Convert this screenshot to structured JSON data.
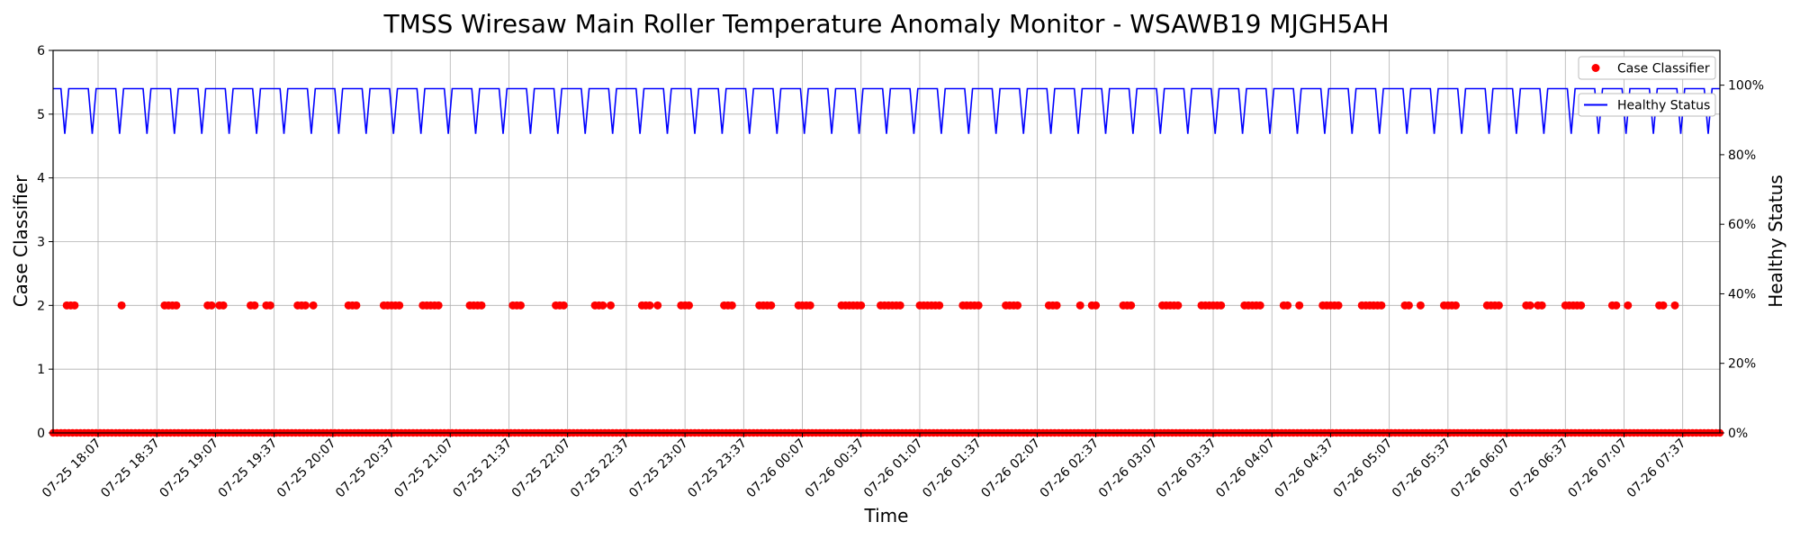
{
  "chart_data": {
    "type": "line",
    "title": "TMSS Wiresaw Main Roller Temperature Anomaly Monitor - WSAWB19 MJGH5AH",
    "xlabel": "Time",
    "ylabel": "Case Classifier",
    "y2label": "Healthy Status",
    "x_range": [
      "2025-07-25 17:44",
      "2025-07-26 07:56"
    ],
    "ylim": [
      0,
      6
    ],
    "y2lim": [
      "0%",
      "110%"
    ],
    "grid": true,
    "legend_position": "top-right",
    "x_ticks": [
      "07-25 18:07",
      "07-25 18:37",
      "07-25 19:07",
      "07-25 19:37",
      "07-25 20:07",
      "07-25 20:37",
      "07-25 21:07",
      "07-25 21:37",
      "07-25 22:07",
      "07-25 22:37",
      "07-25 23:07",
      "07-25 23:37",
      "07-26 00:07",
      "07-26 00:37",
      "07-26 01:07",
      "07-26 01:37",
      "07-26 02:07",
      "07-26 02:37",
      "07-26 03:07",
      "07-26 03:37",
      "07-26 04:07",
      "07-26 04:37",
      "07-26 05:07",
      "07-26 05:37",
      "07-26 06:07",
      "07-26 06:37",
      "07-26 07:07",
      "07-26 07:37"
    ],
    "y_ticks": [
      "0",
      "1",
      "2",
      "3",
      "4",
      "5",
      "6"
    ],
    "y2_ticks": [
      "0%",
      "20%",
      "40%",
      "60%",
      "80%",
      "100%"
    ],
    "series": [
      {
        "name": "Case Classifier",
        "axis": "left",
        "style": "markers",
        "color": "#ff0000",
        "baseline_value": 0,
        "anomaly_value": 2,
        "anomaly_times": [
          "07-25 17:51",
          "07-25 17:53",
          "07-25 17:55",
          "07-25 18:19",
          "07-25 18:41",
          "07-25 18:43",
          "07-25 18:45",
          "07-25 18:47",
          "07-25 19:03",
          "07-25 19:05",
          "07-25 19:09",
          "07-25 19:11",
          "07-25 19:25",
          "07-25 19:27",
          "07-25 19:33",
          "07-25 19:35",
          "07-25 19:49",
          "07-25 19:51",
          "07-25 19:53",
          "07-25 19:57",
          "07-25 20:15",
          "07-25 20:17",
          "07-25 20:19",
          "07-25 20:33",
          "07-25 20:35",
          "07-25 20:37",
          "07-25 20:39",
          "07-25 20:41",
          "07-25 20:53",
          "07-25 20:55",
          "07-25 20:57",
          "07-25 20:59",
          "07-25 21:01",
          "07-25 21:17",
          "07-25 21:19",
          "07-25 21:21",
          "07-25 21:23",
          "07-25 21:39",
          "07-25 21:41",
          "07-25 21:43",
          "07-25 22:01",
          "07-25 22:03",
          "07-25 22:05",
          "07-25 22:21",
          "07-25 22:23",
          "07-25 22:25",
          "07-25 22:29",
          "07-25 22:45",
          "07-25 22:47",
          "07-25 22:49",
          "07-25 22:53",
          "07-25 23:05",
          "07-25 23:07",
          "07-25 23:09",
          "07-25 23:27",
          "07-25 23:29",
          "07-25 23:31",
          "07-25 23:45",
          "07-25 23:47",
          "07-25 23:49",
          "07-25 23:51",
          "07-26 00:05",
          "07-26 00:07",
          "07-26 00:09",
          "07-26 00:11",
          "07-26 00:27",
          "07-26 00:29",
          "07-26 00:31",
          "07-26 00:33",
          "07-26 00:35",
          "07-26 00:37",
          "07-26 00:47",
          "07-26 00:49",
          "07-26 00:51",
          "07-26 00:53",
          "07-26 00:55",
          "07-26 00:57",
          "07-26 01:07",
          "07-26 01:09",
          "07-26 01:11",
          "07-26 01:13",
          "07-26 01:15",
          "07-26 01:17",
          "07-26 01:29",
          "07-26 01:31",
          "07-26 01:33",
          "07-26 01:35",
          "07-26 01:37",
          "07-26 01:51",
          "07-26 01:53",
          "07-26 01:55",
          "07-26 01:57",
          "07-26 02:13",
          "07-26 02:15",
          "07-26 02:17",
          "07-26 02:29",
          "07-26 02:35",
          "07-26 02:37",
          "07-26 02:51",
          "07-26 02:53",
          "07-26 02:55",
          "07-26 03:11",
          "07-26 03:13",
          "07-26 03:15",
          "07-26 03:17",
          "07-26 03:19",
          "07-26 03:31",
          "07-26 03:33",
          "07-26 03:35",
          "07-26 03:37",
          "07-26 03:39",
          "07-26 03:41",
          "07-26 03:53",
          "07-26 03:55",
          "07-26 03:57",
          "07-26 03:59",
          "07-26 04:01",
          "07-26 04:13",
          "07-26 04:15",
          "07-26 04:21",
          "07-26 04:33",
          "07-26 04:35",
          "07-26 04:37",
          "07-26 04:39",
          "07-26 04:41",
          "07-26 04:53",
          "07-26 04:55",
          "07-26 04:57",
          "07-26 04:59",
          "07-26 05:01",
          "07-26 05:03",
          "07-26 05:15",
          "07-26 05:17",
          "07-26 05:23",
          "07-26 05:35",
          "07-26 05:37",
          "07-26 05:39",
          "07-26 05:41",
          "07-26 05:57",
          "07-26 05:59",
          "07-26 06:01",
          "07-26 06:03",
          "07-26 06:17",
          "07-26 06:19",
          "07-26 06:23",
          "07-26 06:25",
          "07-26 06:37",
          "07-26 06:39",
          "07-26 06:41",
          "07-26 06:43",
          "07-26 06:45",
          "07-26 07:01",
          "07-26 07:03",
          "07-26 07:09",
          "07-26 07:25",
          "07-26 07:27",
          "07-26 07:33"
        ]
      },
      {
        "name": "Healthy Status",
        "axis": "right",
        "style": "line",
        "color": "#0000ff",
        "high_value": 99,
        "low_value": 86
      }
    ]
  }
}
